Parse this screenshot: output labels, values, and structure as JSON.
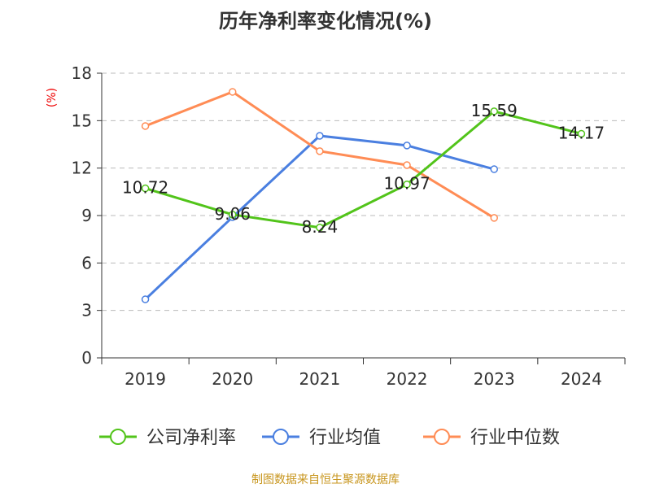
{
  "chart_data": {
    "type": "line",
    "title": "历年净利率变化情况(%)",
    "ylabel": "(%)",
    "xlabel": "",
    "categories": [
      "2019",
      "2020",
      "2021",
      "2022",
      "2023",
      "2024"
    ],
    "ylim": [
      0,
      18
    ],
    "yticks": [
      0,
      3,
      6,
      9,
      12,
      15,
      18
    ],
    "grid": true,
    "legend_placement": "bottom",
    "series": [
      {
        "name": "公司净利率",
        "color": "#52c41a",
        "values": [
          10.72,
          9.06,
          8.24,
          10.97,
          15.59,
          14.17
        ],
        "labels": [
          "10.72",
          "9.06",
          "8.24",
          "10.97",
          "15.59",
          "14.17"
        ]
      },
      {
        "name": "行业均值",
        "color": "#4a7fe0",
        "values": [
          3.7,
          8.9,
          14.04,
          13.43,
          11.93,
          null
        ]
      },
      {
        "name": "行业中位数",
        "color": "#ff8c55",
        "values": [
          14.66,
          16.82,
          13.07,
          12.19,
          8.85,
          null
        ]
      }
    ]
  },
  "source": "制图数据来自恒生聚源数据库"
}
